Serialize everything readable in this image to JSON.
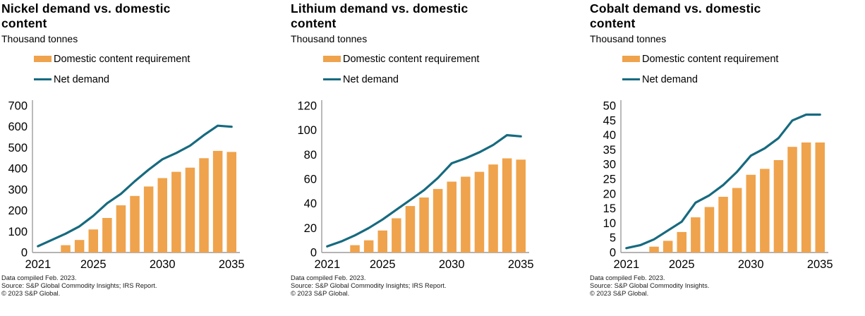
{
  "colors": {
    "axis": "#9c9c9c",
    "bar": "#EFA34C",
    "line": "#176A7F",
    "text": "#000000"
  },
  "chart_data": [
    {
      "type": "bar+line",
      "title": "Nickel demand vs. domestic content",
      "subtitle": "Thousand tonnes",
      "x": [
        2021,
        2022,
        2023,
        2024,
        2025,
        2026,
        2027,
        2028,
        2029,
        2030,
        2031,
        2032,
        2033,
        2034,
        2035
      ],
      "xticks": [
        2021,
        2025,
        2030,
        2035
      ],
      "ylim": [
        0,
        700
      ],
      "ytick_step": 100,
      "grid": false,
      "legend_position": "top-left",
      "series": [
        {
          "name": "Domestic content requirement",
          "type": "bar",
          "color": "#EFA34C",
          "values": [
            null,
            null,
            35,
            60,
            110,
            165,
            225,
            270,
            315,
            355,
            385,
            405,
            450,
            485,
            480
          ]
        },
        {
          "name": "Net demand",
          "type": "line",
          "color": "#176A7F",
          "values": [
            30,
            60,
            90,
            125,
            175,
            235,
            280,
            340,
            395,
            445,
            475,
            510,
            560,
            605,
            600
          ]
        }
      ],
      "footer": {
        "compiled": "Data compiled Feb. 2023.",
        "source": "Source: S&P Global Commodity Insights; IRS Report.",
        "copyright": "© 2023 S&P Global."
      }
    },
    {
      "type": "bar+line",
      "title": "Lithium demand vs. domestic content",
      "subtitle": "Thousand tonnes",
      "x": [
        2021,
        2022,
        2023,
        2024,
        2025,
        2026,
        2027,
        2028,
        2029,
        2030,
        2031,
        2032,
        2033,
        2034,
        2035
      ],
      "xticks": [
        2021,
        2025,
        2030,
        2035
      ],
      "ylim": [
        0,
        120
      ],
      "ytick_step": 20,
      "grid": false,
      "legend_position": "top-left",
      "series": [
        {
          "name": "Domestic content requirement",
          "type": "bar",
          "color": "#EFA34C",
          "values": [
            null,
            null,
            6,
            10,
            18,
            28,
            38,
            45,
            52,
            58,
            62,
            66,
            72,
            77,
            76
          ]
        },
        {
          "name": "Net demand",
          "type": "line",
          "color": "#176A7F",
          "values": [
            5,
            9,
            14,
            20,
            27,
            35,
            43,
            51,
            61,
            73,
            77,
            82,
            88,
            96,
            95
          ]
        }
      ],
      "footer": {
        "compiled": "Data compiled Feb. 2023.",
        "source": "Source: S&P Global Commodity Insights; IRS Report.",
        "copyright": "© 2023 S&P Global."
      }
    },
    {
      "type": "bar+line",
      "title": "Cobalt demand vs. domestic content",
      "subtitle": "Thousand tonnes",
      "x": [
        2021,
        2022,
        2023,
        2024,
        2025,
        2026,
        2027,
        2028,
        2029,
        2030,
        2031,
        2032,
        2033,
        2034,
        2035
      ],
      "xticks": [
        2021,
        2025,
        2030,
        2035
      ],
      "ylim": [
        0,
        50
      ],
      "ytick_step": 5,
      "grid": false,
      "legend_position": "top-left",
      "series": [
        {
          "name": "Domestic content requirement",
          "type": "bar",
          "color": "#EFA34C",
          "values": [
            null,
            null,
            2,
            4,
            7,
            12,
            15.5,
            19,
            22,
            26.5,
            28.5,
            31.5,
            36,
            37.5,
            37.5
          ]
        },
        {
          "name": "Net demand",
          "type": "line",
          "color": "#176A7F",
          "values": [
            1.5,
            2.5,
            4.5,
            7.5,
            10.5,
            17,
            19.5,
            23,
            27.5,
            33,
            35.5,
            39,
            45,
            47,
            47
          ]
        }
      ],
      "footer": {
        "compiled": "Data compiled Feb. 2023.",
        "source": "Source: S&P Global Commodity Insights.",
        "copyright": "© 2023 S&P Global."
      }
    }
  ]
}
